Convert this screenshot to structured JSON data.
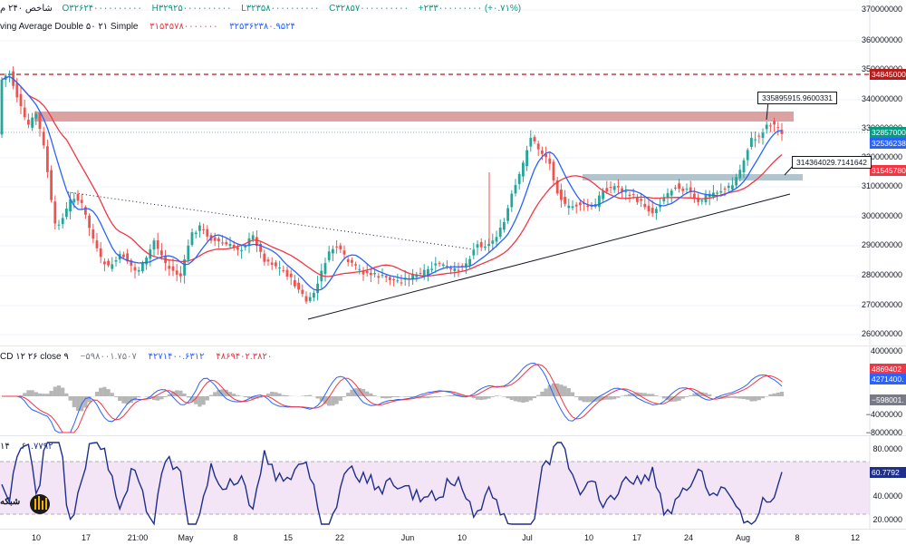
{
  "main_legend": {
    "title": "شاخص ۲۴۰ م",
    "open": "O۳۲۶۲۴۰۰۰۰۰۰۰۰۰۰",
    "high": "H۳۲۹۲۵۰۰۰۰۰۰۰۰۰۰",
    "low": "L۳۲۳۵۸۰۰۰۰۰۰۰۰۰۰",
    "close": "C۳۲۸۵۷۰۰۰۰۰۰۰۰۰۰",
    "change": "+۲۳۳۰۰۰۰۰۰۰۰۰ (+۰.۷۱%)",
    "colors": {
      "value": "#089981",
      "title": "#131722"
    }
  },
  "ma_legend": {
    "label": "ving Average Double ۵۰ ۲۱ Simple",
    "value1": "۳۱۵۴۵۷۸۰۰۰۰۰۰۰",
    "value2": "۳۲۵۳۶۲۳۸۰.۹۵۲۴",
    "colors": {
      "ma_slow": "#f23645",
      "ma_fast": "#2962ff"
    }
  },
  "macd_legend": {
    "label": "CD ۱۲ ۲۶ close ۹",
    "hist": "−۵۹۸۰۰۱.۷۵۰۷",
    "macd": "۴۲۷۱۴۰۰.۶۳۱۲",
    "signal": "۴۸۶۹۴۰۲.۳۸۲۰"
  },
  "rsi_legend": {
    "label": "۱۴",
    "value": "۶۰.۷۷۹۲"
  },
  "price_axis": [
    "370000000",
    "360000000",
    "350000000",
    "340000000",
    "330000000",
    "320000000",
    "310000000",
    "300000000",
    "290000000",
    "280000000",
    "270000000",
    "260000000"
  ],
  "price_tags": [
    {
      "text": "348450000",
      "color": "#b71c1c"
    },
    {
      "text": "328570000",
      "color": "#089981"
    },
    {
      "text": "325362380",
      "color": "#2962ff"
    },
    {
      "text": "315457800",
      "color": "#f23645"
    }
  ],
  "macd_axis": [
    "4000000",
    "0.000",
    "−4000000",
    "−8000000"
  ],
  "macd_tags": [
    {
      "text": "4869402",
      "color": "#f23645"
    },
    {
      "text": "4271400.",
      "color": "#2962ff"
    },
    {
      "text": "−598001.",
      "color": "#787b86"
    }
  ],
  "rsi_axis": [
    "80.0000",
    "40.0000",
    "20.0000"
  ],
  "rsi_tag": {
    "text": "60.7792",
    "color": "#1e2f8c"
  },
  "callouts": {
    "upper": "335895915.9600331",
    "lower": "314364029.7141642"
  },
  "x_axis": [
    "10",
    "17",
    "21:00",
    "May",
    "8",
    "15",
    "22",
    "Jun",
    "10",
    "Jul",
    "10",
    "17",
    "24",
    "Aug",
    "8",
    "12"
  ],
  "logo_text": "شبکه"
}
